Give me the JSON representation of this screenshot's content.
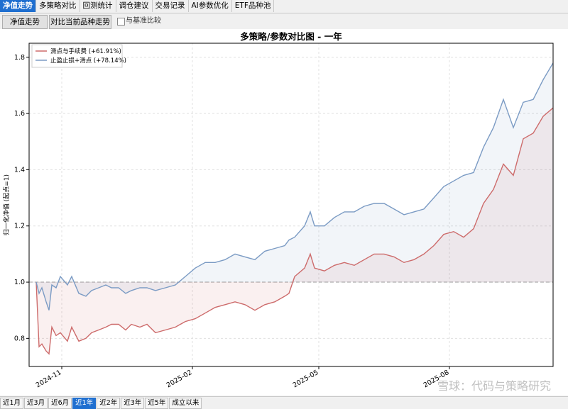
{
  "tabs": [
    {
      "label": "净值走势",
      "active": true
    },
    {
      "label": "多策略对比",
      "active": false
    },
    {
      "label": "回测统计",
      "active": false
    },
    {
      "label": "调仓建议",
      "active": false
    },
    {
      "label": "交易记录",
      "active": false
    },
    {
      "label": "AI参数优化",
      "active": false
    },
    {
      "label": "ETF品种池",
      "active": false
    }
  ],
  "toolbar": {
    "nav_button": "净值走势",
    "compare_button": "对比当前品种走势",
    "benchmark_checkbox": "与基准比较"
  },
  "ranges": [
    {
      "label": "近1月",
      "active": false
    },
    {
      "label": "近3月",
      "active": false
    },
    {
      "label": "近6月",
      "active": false
    },
    {
      "label": "近1年",
      "active": true
    },
    {
      "label": "近2年",
      "active": false
    },
    {
      "label": "近3年",
      "active": false
    },
    {
      "label": "近5年",
      "active": false
    },
    {
      "label": "成立以来",
      "active": false
    }
  ],
  "watermark": "雪球：代码与策略研究",
  "colors": {
    "accent": "#1f6fd0",
    "series1": "#cd6b6b",
    "series2": "#7b9bc4",
    "baseline": "#999999"
  },
  "chart_data": {
    "type": "line",
    "title": "多策略/参数对比图 - 一年",
    "ylabel": "归一化净值 (起点=1)",
    "xlabel": "",
    "ylim": [
      0.7,
      1.85
    ],
    "xlim": [
      "2024-10-09",
      "2025-10-13"
    ],
    "yticks": [
      0.8,
      1.0,
      1.2,
      1.4,
      1.6,
      1.8
    ],
    "xticks": [
      "2024-11",
      "2025-02",
      "2025-05",
      "2025-08"
    ],
    "baseline": 1.0,
    "grid": true,
    "legend_position": "top-left",
    "series": [
      {
        "name": "滑点与手续费 (+61.91%)",
        "color": "#cd6b6b",
        "x": [
          "2024-10-14",
          "2024-10-16",
          "2024-10-18",
          "2024-10-21",
          "2024-10-23",
          "2024-10-25",
          "2024-10-28",
          "2024-10-31",
          "2024-11-05",
          "2024-11-08",
          "2024-11-13",
          "2024-11-18",
          "2024-11-22",
          "2024-11-27",
          "2024-12-02",
          "2024-12-06",
          "2024-12-11",
          "2024-12-16",
          "2024-12-20",
          "2024-12-26",
          "2024-12-31",
          "2025-01-06",
          "2025-01-13",
          "2025-01-20",
          "2025-01-27",
          "2025-02-03",
          "2025-02-10",
          "2025-02-17",
          "2025-02-24",
          "2025-03-03",
          "2025-03-10",
          "2025-03-17",
          "2025-03-24",
          "2025-03-31",
          "2025-04-07",
          "2025-04-10",
          "2025-04-14",
          "2025-04-21",
          "2025-04-25",
          "2025-04-28",
          "2025-05-05",
          "2025-05-12",
          "2025-05-19",
          "2025-05-26",
          "2025-06-02",
          "2025-06-09",
          "2025-06-16",
          "2025-06-23",
          "2025-06-30",
          "2025-07-07",
          "2025-07-14",
          "2025-07-21",
          "2025-07-28",
          "2025-08-04",
          "2025-08-11",
          "2025-08-18",
          "2025-08-25",
          "2025-09-01",
          "2025-09-08",
          "2025-09-15",
          "2025-09-22",
          "2025-09-29",
          "2025-10-06",
          "2025-10-13"
        ],
        "y": [
          1.0,
          0.77,
          0.78,
          0.755,
          0.745,
          0.84,
          0.81,
          0.82,
          0.79,
          0.84,
          0.79,
          0.8,
          0.82,
          0.83,
          0.84,
          0.85,
          0.85,
          0.83,
          0.85,
          0.84,
          0.85,
          0.82,
          0.83,
          0.84,
          0.86,
          0.87,
          0.89,
          0.91,
          0.92,
          0.93,
          0.92,
          0.9,
          0.92,
          0.93,
          0.95,
          0.96,
          1.02,
          1.05,
          1.1,
          1.05,
          1.04,
          1.06,
          1.07,
          1.06,
          1.08,
          1.1,
          1.1,
          1.09,
          1.07,
          1.08,
          1.1,
          1.13,
          1.17,
          1.18,
          1.16,
          1.19,
          1.28,
          1.33,
          1.42,
          1.38,
          1.51,
          1.53,
          1.59,
          1.62
        ]
      },
      {
        "name": "止盈止损+滑点 (+78.14%)",
        "color": "#7b9bc4",
        "x": [
          "2024-10-14",
          "2024-10-16",
          "2024-10-18",
          "2024-10-21",
          "2024-10-23",
          "2024-10-25",
          "2024-10-28",
          "2024-10-31",
          "2024-11-05",
          "2024-11-08",
          "2024-11-13",
          "2024-11-18",
          "2024-11-22",
          "2024-11-27",
          "2024-12-02",
          "2024-12-06",
          "2024-12-11",
          "2024-12-16",
          "2024-12-20",
          "2024-12-26",
          "2024-12-31",
          "2025-01-06",
          "2025-01-13",
          "2025-01-20",
          "2025-01-27",
          "2025-02-03",
          "2025-02-10",
          "2025-02-17",
          "2025-02-24",
          "2025-03-03",
          "2025-03-10",
          "2025-03-17",
          "2025-03-24",
          "2025-03-31",
          "2025-04-07",
          "2025-04-10",
          "2025-04-14",
          "2025-04-21",
          "2025-04-25",
          "2025-04-28",
          "2025-05-05",
          "2025-05-12",
          "2025-05-19",
          "2025-05-26",
          "2025-06-02",
          "2025-06-09",
          "2025-06-16",
          "2025-06-23",
          "2025-06-30",
          "2025-07-07",
          "2025-07-14",
          "2025-07-21",
          "2025-07-28",
          "2025-08-04",
          "2025-08-11",
          "2025-08-18",
          "2025-08-25",
          "2025-09-01",
          "2025-09-08",
          "2025-09-15",
          "2025-09-22",
          "2025-09-29",
          "2025-10-06",
          "2025-10-13"
        ],
        "y": [
          1.0,
          0.96,
          0.98,
          0.93,
          0.9,
          0.99,
          0.98,
          1.02,
          0.99,
          1.02,
          0.96,
          0.95,
          0.97,
          0.98,
          0.99,
          0.98,
          0.98,
          0.96,
          0.97,
          0.98,
          0.98,
          0.97,
          0.98,
          0.99,
          1.02,
          1.05,
          1.07,
          1.07,
          1.08,
          1.1,
          1.09,
          1.08,
          1.11,
          1.12,
          1.13,
          1.15,
          1.16,
          1.2,
          1.25,
          1.2,
          1.2,
          1.23,
          1.25,
          1.25,
          1.27,
          1.28,
          1.28,
          1.26,
          1.24,
          1.25,
          1.26,
          1.3,
          1.34,
          1.36,
          1.38,
          1.39,
          1.48,
          1.55,
          1.65,
          1.55,
          1.64,
          1.65,
          1.72,
          1.78
        ]
      }
    ]
  }
}
